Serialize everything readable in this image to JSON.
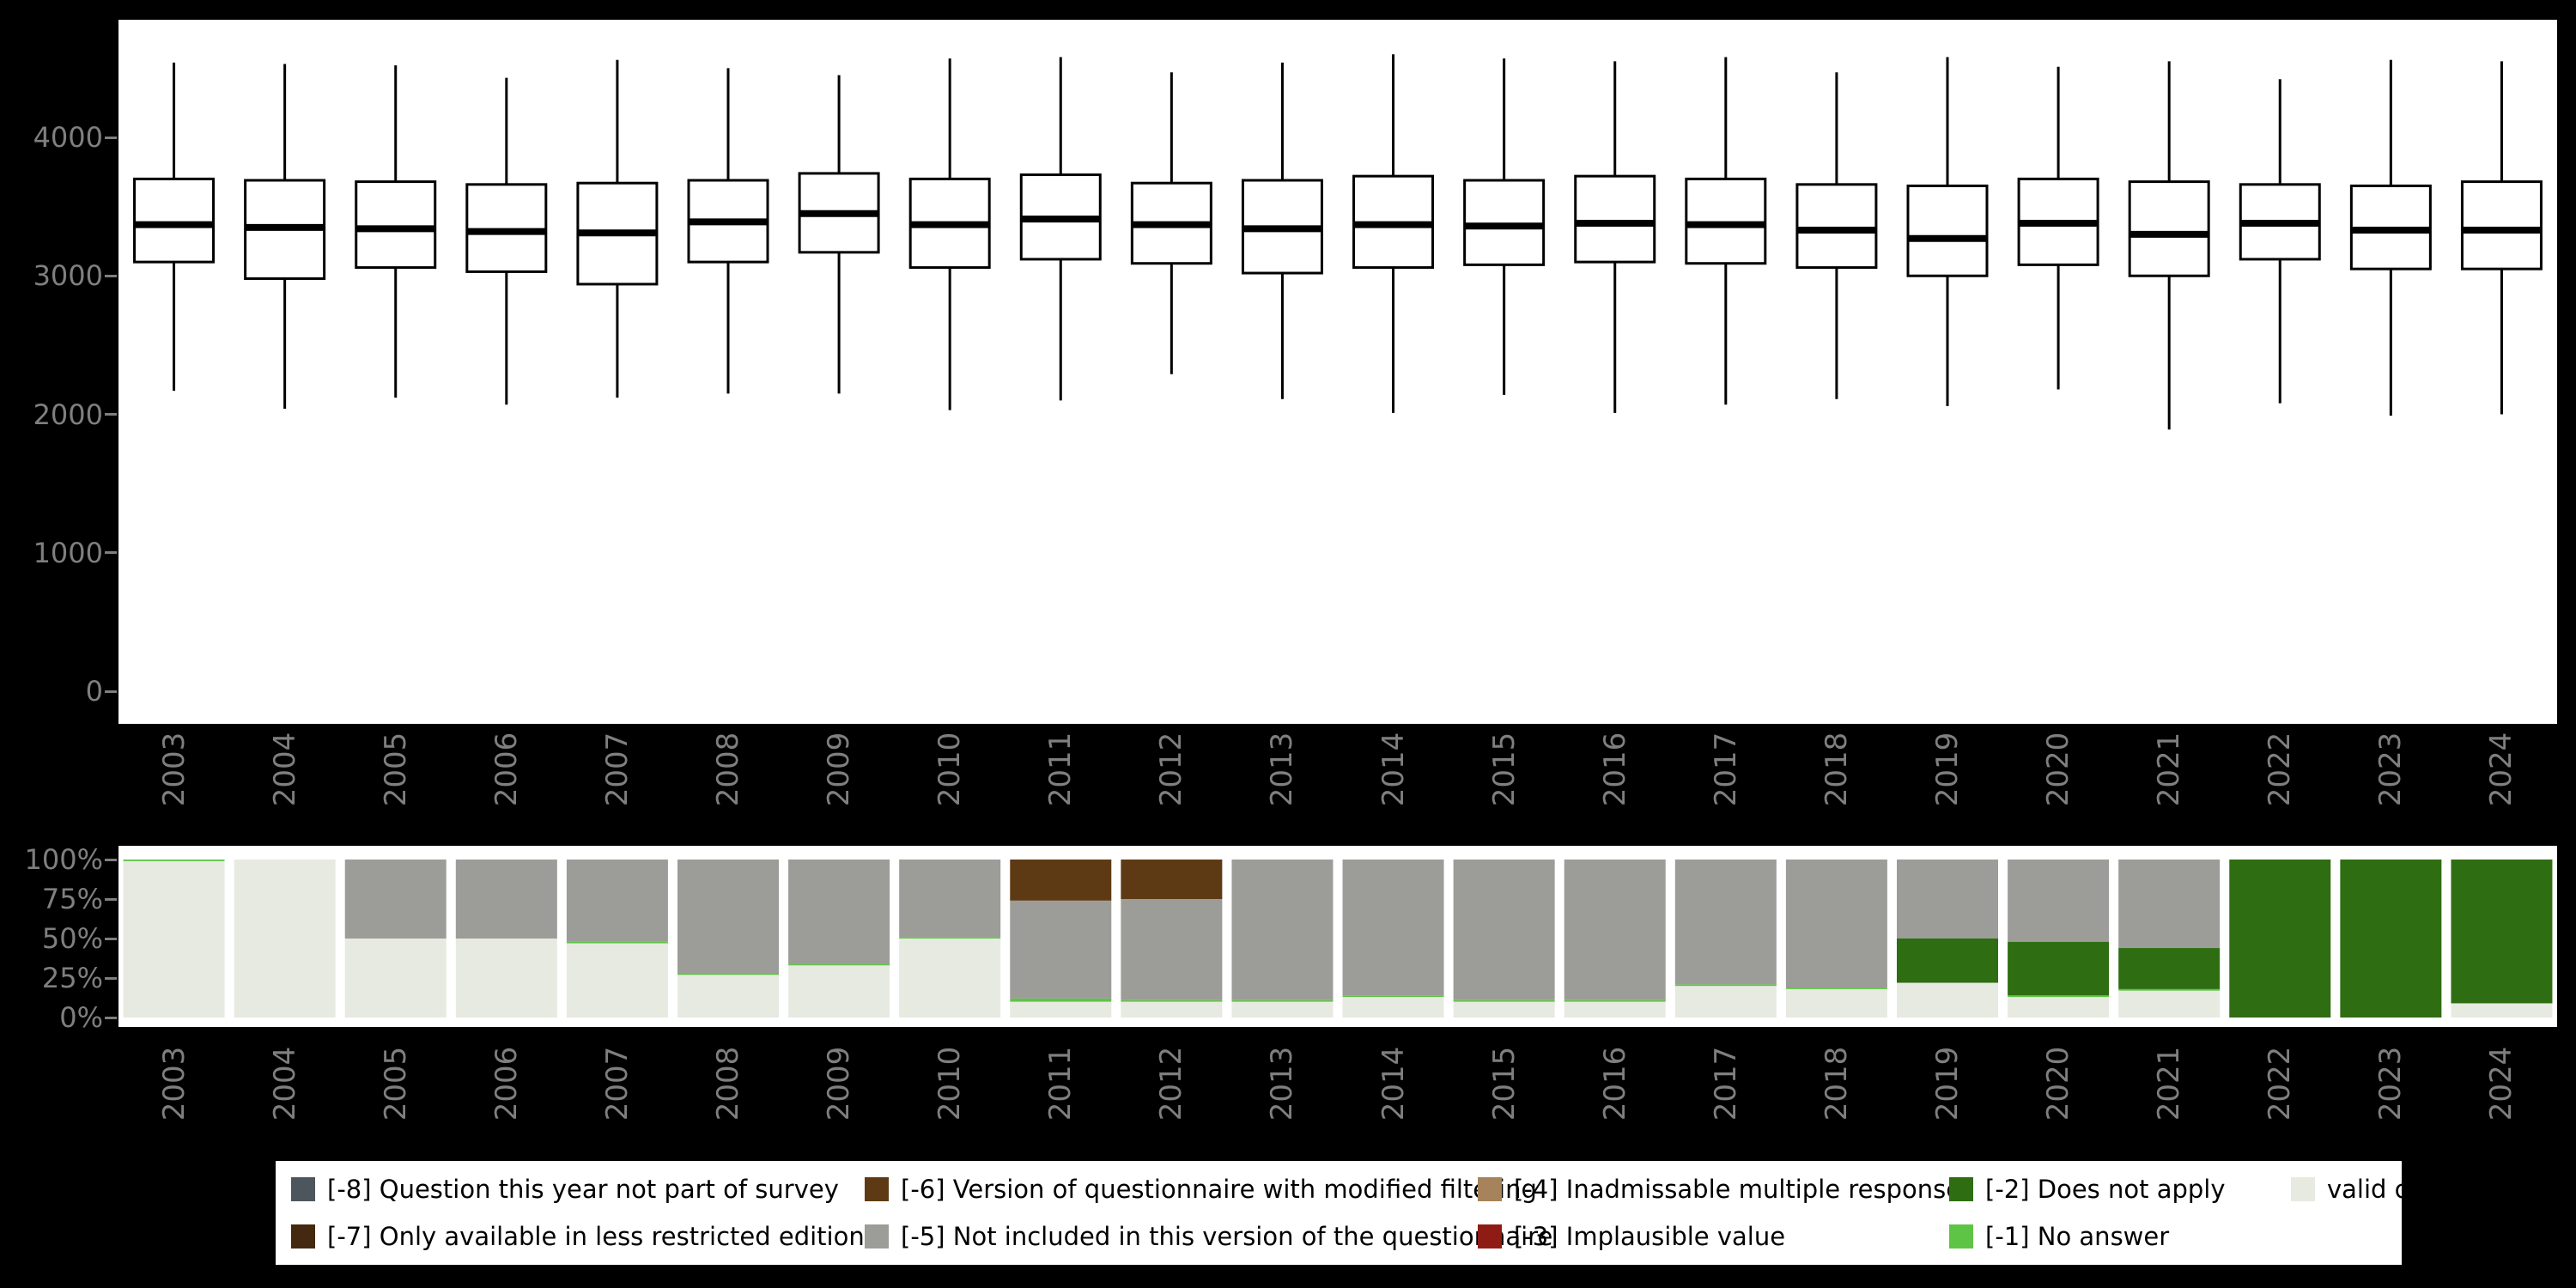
{
  "figure": {
    "background": "#000000",
    "panel_background": "#ffffff"
  },
  "years": [
    "2003",
    "2004",
    "2005",
    "2006",
    "2007",
    "2008",
    "2009",
    "2010",
    "2011",
    "2012",
    "2013",
    "2014",
    "2015",
    "2016",
    "2017",
    "2018",
    "2019",
    "2020",
    "2021",
    "2022",
    "2023",
    "2024"
  ],
  "colors": {
    "m8": "#4d565c",
    "m7": "#44280f",
    "m6": "#5e3a14",
    "m5": "#9c9c98",
    "m4": "#a6835a",
    "m3": "#8e1c15",
    "m2": "#2f6d12",
    "m1": "#5ec445",
    "valid": "#e7eae1",
    "box_stroke": "#000000",
    "axis_text": "#7f7f7f"
  },
  "chart_data": [
    {
      "type": "boxplot",
      "title": "",
      "xlabel": "",
      "ylabel": "",
      "ylim": [
        0,
        4850
      ],
      "ytick_values": [
        0,
        1000,
        2000,
        3000,
        4000
      ],
      "ytick_labels": [
        "0",
        "1000",
        "2000",
        "3000",
        "4000"
      ],
      "categories": [
        "2003",
        "2004",
        "2005",
        "2006",
        "2007",
        "2008",
        "2009",
        "2010",
        "2011",
        "2012",
        "2013",
        "2014",
        "2015",
        "2016",
        "2017",
        "2018",
        "2019",
        "2020",
        "2021",
        "2022",
        "2023",
        "2024"
      ],
      "series": [
        {
          "year": "2003",
          "low": 2170,
          "q1": 3100,
          "median": 3370,
          "q3": 3700,
          "high": 4540
        },
        {
          "year": "2004",
          "low": 2040,
          "q1": 2980,
          "median": 3350,
          "q3": 3690,
          "high": 4530
        },
        {
          "year": "2005",
          "low": 2120,
          "q1": 3060,
          "median": 3340,
          "q3": 3680,
          "high": 4520
        },
        {
          "year": "2006",
          "low": 2070,
          "q1": 3030,
          "median": 3320,
          "q3": 3660,
          "high": 4430
        },
        {
          "year": "2007",
          "low": 2120,
          "q1": 2940,
          "median": 3310,
          "q3": 3670,
          "high": 4560
        },
        {
          "year": "2008",
          "low": 2150,
          "q1": 3100,
          "median": 3390,
          "q3": 3690,
          "high": 4500
        },
        {
          "year": "2009",
          "low": 2150,
          "q1": 3170,
          "median": 3450,
          "q3": 3740,
          "high": 4450
        },
        {
          "year": "2010",
          "low": 2030,
          "q1": 3060,
          "median": 3370,
          "q3": 3700,
          "high": 4570
        },
        {
          "year": "2011",
          "low": 2100,
          "q1": 3120,
          "median": 3410,
          "q3": 3730,
          "high": 4580
        },
        {
          "year": "2012",
          "low": 2290,
          "q1": 3090,
          "median": 3370,
          "q3": 3670,
          "high": 4470
        },
        {
          "year": "2013",
          "low": 2110,
          "q1": 3020,
          "median": 3340,
          "q3": 3690,
          "high": 4540
        },
        {
          "year": "2014",
          "low": 2010,
          "q1": 3060,
          "median": 3370,
          "q3": 3720,
          "high": 4600
        },
        {
          "year": "2015",
          "low": 2140,
          "q1": 3080,
          "median": 3360,
          "q3": 3690,
          "high": 4570
        },
        {
          "year": "2016",
          "low": 2010,
          "q1": 3100,
          "median": 3380,
          "q3": 3720,
          "high": 4550
        },
        {
          "year": "2017",
          "low": 2070,
          "q1": 3090,
          "median": 3370,
          "q3": 3700,
          "high": 4580
        },
        {
          "year": "2018",
          "low": 2110,
          "q1": 3060,
          "median": 3330,
          "q3": 3660,
          "high": 4470
        },
        {
          "year": "2019",
          "low": 2060,
          "q1": 3000,
          "median": 3270,
          "q3": 3650,
          "high": 4580
        },
        {
          "year": "2020",
          "low": 2180,
          "q1": 3080,
          "median": 3380,
          "q3": 3700,
          "high": 4510
        },
        {
          "year": "2021",
          "low": 1890,
          "q1": 3000,
          "median": 3300,
          "q3": 3680,
          "high": 4550
        },
        {
          "year": "2022",
          "low": 2080,
          "q1": 3120,
          "median": 3380,
          "q3": 3660,
          "high": 4420
        },
        {
          "year": "2023",
          "low": 1990,
          "q1": 3050,
          "median": 3330,
          "q3": 3650,
          "high": 4560
        },
        {
          "year": "2024",
          "low": 2000,
          "q1": 3050,
          "median": 3330,
          "q3": 3680,
          "high": 4550
        }
      ]
    },
    {
      "type": "bar",
      "stacked": true,
      "unit": "percent",
      "ylim": [
        0,
        100
      ],
      "ytick_values": [
        0,
        25,
        50,
        75,
        100
      ],
      "ytick_labels": [
        "0%",
        "25%",
        "50%",
        "75%",
        "100%"
      ],
      "categories": [
        "2003",
        "2004",
        "2005",
        "2006",
        "2007",
        "2008",
        "2009",
        "2010",
        "2011",
        "2012",
        "2013",
        "2014",
        "2015",
        "2016",
        "2017",
        "2018",
        "2019",
        "2020",
        "2021",
        "2022",
        "2023",
        "2024"
      ],
      "stack_order": [
        "valid",
        "m1",
        "m2",
        "m3",
        "m4",
        "m5",
        "m6",
        "m7",
        "m8"
      ],
      "series": [
        {
          "key": "valid",
          "name": "valid cases",
          "values": [
            99,
            100,
            50,
            50,
            47,
            27,
            33,
            50,
            10,
            10,
            10,
            13,
            10,
            10,
            20,
            18,
            22,
            13,
            17,
            0,
            0,
            9
          ]
        },
        {
          "key": "m1",
          "name": "[-1] No answer",
          "values": [
            1,
            0,
            0,
            0,
            1,
            1,
            1,
            1,
            2,
            1,
            1,
            1,
            1,
            1,
            1,
            1,
            0,
            1,
            1,
            0,
            0,
            0
          ]
        },
        {
          "key": "m2",
          "name": "[-2] Does not apply",
          "values": [
            0,
            0,
            0,
            0,
            0,
            0,
            0,
            0,
            0,
            0,
            0,
            0,
            0,
            0,
            0,
            0,
            28,
            34,
            26,
            100,
            100,
            91
          ]
        },
        {
          "key": "m5",
          "name": "[-5] Not included in this version of the questionnaire",
          "values": [
            0,
            0,
            50,
            50,
            52,
            72,
            66,
            49,
            62,
            64,
            89,
            86,
            89,
            89,
            79,
            81,
            50,
            52,
            56,
            0,
            0,
            0
          ]
        },
        {
          "key": "m6",
          "name": "[-6] Version of questionnaire with modified filtering",
          "values": [
            0,
            0,
            0,
            0,
            0,
            0,
            0,
            0,
            26,
            25,
            0,
            0,
            0,
            0,
            0,
            0,
            0,
            0,
            0,
            0,
            0,
            0
          ]
        }
      ]
    }
  ],
  "legend": {
    "rows": [
      [
        {
          "key": "m8",
          "label": "[-8] Question this year not part of survey"
        },
        {
          "key": "m6",
          "label": "[-6] Version of questionnaire with modified filtering"
        },
        {
          "key": "m4",
          "label": "[-4] Inadmissable multiple response"
        },
        {
          "key": "m2",
          "label": "[-2] Does not apply"
        },
        {
          "key": "valid",
          "label": "valid cases"
        }
      ],
      [
        {
          "key": "m7",
          "label": "[-7] Only available in less restricted edition"
        },
        {
          "key": "m5",
          "label": "[-5] Not included in this version of the questionnaire"
        },
        {
          "key": "m3",
          "label": "[-3] Implausible value"
        },
        {
          "key": "m1",
          "label": "[-1] No answer"
        }
      ]
    ]
  }
}
